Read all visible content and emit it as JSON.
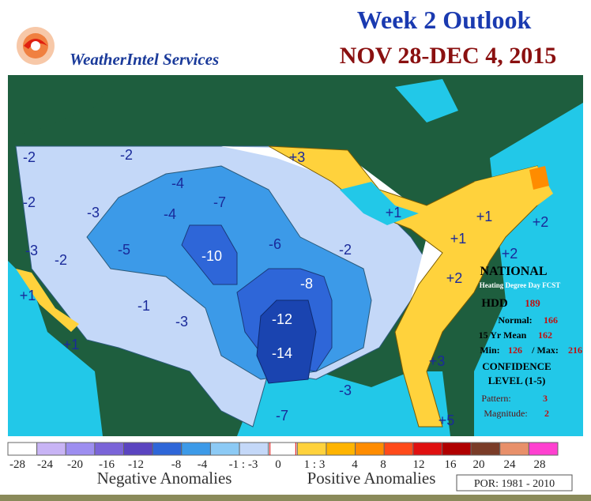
{
  "header": {
    "company": "WeatherIntel Services",
    "title": "Week 2 Outlook",
    "dates": "NOV 28-DEC 4, 2015"
  },
  "map_labels": [
    "-2",
    "-2",
    "-2",
    "-3",
    "-4",
    "-7",
    "-4",
    "-3",
    "-2",
    "-5",
    "-10",
    "-6",
    "-2",
    "-8",
    "-1",
    "-3",
    "-12",
    "-14",
    "+1",
    "+1",
    "+3",
    "+1",
    "+1",
    "+2",
    "+1",
    "+2",
    "+2",
    "+3",
    "-3",
    "-7",
    "+5"
  ],
  "national": {
    "title": "NATIONAL",
    "subtitle": "Heating Degree Day FCST",
    "hdd_label": "HDD",
    "hdd": "189",
    "normal_label": "Normal:",
    "normal": "166",
    "mean_label": "15 Yr Mean",
    "mean": "162",
    "min_label": "Min:",
    "min": "126",
    "max_label": "/ Max:",
    "max": "216",
    "confidence": "CONFIDENCE",
    "level": "LEVEL (1-5)",
    "pattern_label": "Pattern:",
    "pattern": "3",
    "magnitude_label": "Magnitude:",
    "magnitude": "2"
  },
  "legend": {
    "colors": [
      "#ffffff",
      "#c8b4f5",
      "#9d8ef0",
      "#7a64d8",
      "#5a44c0",
      "#2e66d8",
      "#3c9ae8",
      "#8ccaf5",
      "#c4d8f8",
      "#ffffff",
      "#ffd23c",
      "#ffb400",
      "#ff8c00",
      "#ff4a1a",
      "#e01010",
      "#b00000",
      "#7a3c28",
      "#e8906a",
      "#ff40d0"
    ],
    "labels": [
      "-28",
      "-24",
      "-20",
      "-16",
      "-12",
      "-8",
      "-4",
      "-1 : -3",
      "0",
      "1 : 3",
      "4",
      "8",
      "12",
      "16",
      "20",
      "24",
      "28"
    ],
    "negative": "Negative Anomalies",
    "positive": "Positive Anomalies",
    "period": "POR: 1981 - 2010"
  }
}
